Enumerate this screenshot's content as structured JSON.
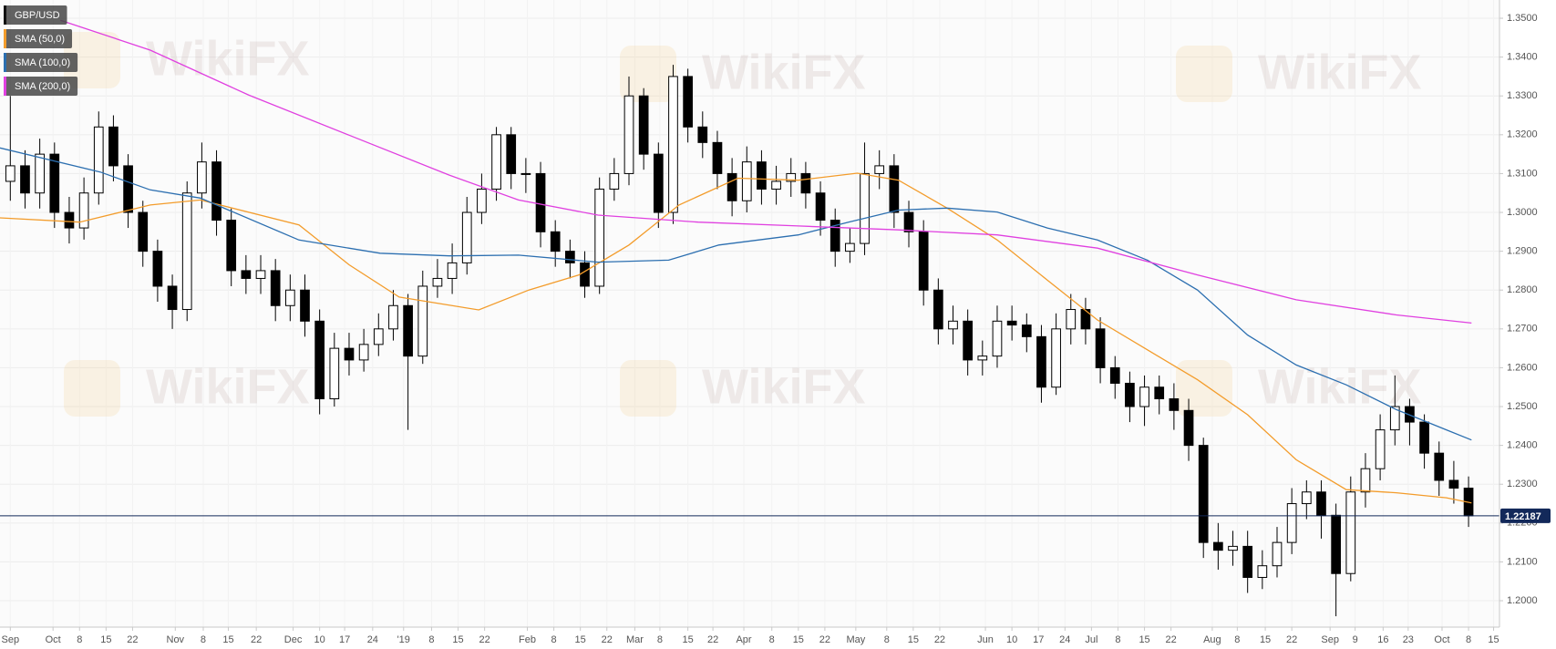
{
  "chart_data": {
    "type": "candlestick",
    "watermark": "WikiFX",
    "legend": "top-left",
    "grid": true,
    "up_color": "#ffffff",
    "down_color": "#000000",
    "last_price": 1.22187,
    "last_price_color": "#13295a",
    "xlim": [
      -0.7,
      101.1
    ],
    "ylim": [
      1.1932,
      1.3547
    ],
    "yticks": [
      {
        "value": 1.2,
        "label": "1.2000"
      },
      {
        "value": 1.21,
        "label": "1.2100"
      },
      {
        "value": 1.22,
        "label": "1.2200"
      },
      {
        "value": 1.23,
        "label": "1.2300"
      },
      {
        "value": 1.24,
        "label": "1.2400"
      },
      {
        "value": 1.25,
        "label": "1.2500"
      },
      {
        "value": 1.26,
        "label": "1.2600"
      },
      {
        "value": 1.27,
        "label": "1.2700"
      },
      {
        "value": 1.28,
        "label": "1.2800"
      },
      {
        "value": 1.29,
        "label": "1.2900"
      },
      {
        "value": 1.3,
        "label": "1.3000"
      },
      {
        "value": 1.31,
        "label": "1.3100"
      },
      {
        "value": 1.32,
        "label": "1.3200"
      },
      {
        "value": 1.33,
        "label": "1.3300"
      },
      {
        "value": 1.34,
        "label": "1.3400"
      },
      {
        "value": 1.35,
        "label": "1.3500"
      }
    ],
    "xticks": [
      {
        "value": 0,
        "label": "Sep"
      },
      {
        "value": 2.9,
        "label": "Oct"
      },
      {
        "value": 4.7,
        "label": "8"
      },
      {
        "value": 6.5,
        "label": "15"
      },
      {
        "value": 8.3,
        "label": "22"
      },
      {
        "value": 11.2,
        "label": "Nov"
      },
      {
        "value": 13.1,
        "label": "8"
      },
      {
        "value": 14.8,
        "label": "15"
      },
      {
        "value": 16.7,
        "label": "22"
      },
      {
        "value": 19.2,
        "label": "Dec"
      },
      {
        "value": 21.0,
        "label": "10"
      },
      {
        "value": 22.7,
        "label": "17"
      },
      {
        "value": 24.6,
        "label": "24"
      },
      {
        "value": 26.7,
        "label": "'19"
      },
      {
        "value": 28.6,
        "label": "8"
      },
      {
        "value": 30.4,
        "label": "15"
      },
      {
        "value": 32.2,
        "label": "22"
      },
      {
        "value": 35.1,
        "label": "Feb"
      },
      {
        "value": 36.9,
        "label": "8"
      },
      {
        "value": 38.7,
        "label": "15"
      },
      {
        "value": 40.5,
        "label": "22"
      },
      {
        "value": 42.4,
        "label": "Mar"
      },
      {
        "value": 44.1,
        "label": "8"
      },
      {
        "value": 46.0,
        "label": "15"
      },
      {
        "value": 47.7,
        "label": "22"
      },
      {
        "value": 49.8,
        "label": "Apr"
      },
      {
        "value": 51.7,
        "label": "8"
      },
      {
        "value": 53.5,
        "label": "15"
      },
      {
        "value": 55.3,
        "label": "22"
      },
      {
        "value": 57.4,
        "label": "May"
      },
      {
        "value": 59.5,
        "label": "8"
      },
      {
        "value": 61.3,
        "label": "15"
      },
      {
        "value": 63.1,
        "label": "22"
      },
      {
        "value": 66.2,
        "label": "Jun"
      },
      {
        "value": 68.0,
        "label": "10"
      },
      {
        "value": 69.8,
        "label": "17"
      },
      {
        "value": 71.6,
        "label": "24"
      },
      {
        "value": 73.4,
        "label": "Jul"
      },
      {
        "value": 75.2,
        "label": "8"
      },
      {
        "value": 77.0,
        "label": "15"
      },
      {
        "value": 78.8,
        "label": "22"
      },
      {
        "value": 81.6,
        "label": "Aug"
      },
      {
        "value": 83.3,
        "label": "8"
      },
      {
        "value": 85.2,
        "label": "15"
      },
      {
        "value": 87.0,
        "label": "22"
      },
      {
        "value": 89.6,
        "label": "Sep"
      },
      {
        "value": 91.3,
        "label": "9"
      },
      {
        "value": 93.2,
        "label": "16"
      },
      {
        "value": 94.9,
        "label": "23"
      },
      {
        "value": 97.2,
        "label": "Oct"
      },
      {
        "value": 99.0,
        "label": "8"
      },
      {
        "value": 100.7,
        "label": "15"
      }
    ],
    "series": [
      {
        "name": "GBP/USD",
        "type": "candlestick",
        "color": "#000000",
        "open": [
          1.308,
          1.312,
          1.305,
          1.315,
          1.3,
          1.296,
          1.305,
          1.322,
          1.312,
          1.3,
          1.29,
          1.281,
          1.275,
          1.305,
          1.313,
          1.298,
          1.285,
          1.283,
          1.285,
          1.276,
          1.28,
          1.272,
          1.252,
          1.265,
          1.262,
          1.266,
          1.27,
          1.276,
          1.263,
          1.281,
          1.283,
          1.287,
          1.3,
          1.306,
          1.32,
          1.31,
          1.31,
          1.295,
          1.29,
          1.287,
          1.281,
          1.306,
          1.31,
          1.33,
          1.315,
          1.3,
          1.335,
          1.322,
          1.318,
          1.31,
          1.303,
          1.313,
          1.306,
          1.308,
          1.31,
          1.305,
          1.298,
          1.29,
          1.292,
          1.31,
          1.312,
          1.3,
          1.295,
          1.28,
          1.27,
          1.272,
          1.262,
          1.263,
          1.272,
          1.271,
          1.268,
          1.255,
          1.27,
          1.275,
          1.27,
          1.26,
          1.256,
          1.25,
          1.255,
          1.252,
          1.249,
          1.24,
          1.215,
          1.213,
          1.214,
          1.206,
          1.209,
          1.215,
          1.225,
          1.228,
          1.222,
          1.207,
          1.228,
          1.234,
          1.244,
          1.25,
          1.246,
          1.238,
          1.231,
          1.229
        ],
        "high": [
          1.33,
          1.316,
          1.319,
          1.318,
          1.304,
          1.309,
          1.326,
          1.325,
          1.315,
          1.303,
          1.293,
          1.284,
          1.308,
          1.318,
          1.316,
          1.301,
          1.289,
          1.289,
          1.288,
          1.284,
          1.284,
          1.275,
          1.269,
          1.269,
          1.27,
          1.274,
          1.28,
          1.279,
          1.285,
          1.288,
          1.292,
          1.304,
          1.31,
          1.322,
          1.322,
          1.314,
          1.313,
          1.298,
          1.293,
          1.29,
          1.309,
          1.314,
          1.335,
          1.332,
          1.318,
          1.338,
          1.337,
          1.326,
          1.321,
          1.314,
          1.317,
          1.316,
          1.312,
          1.314,
          1.313,
          1.308,
          1.301,
          1.296,
          1.318,
          1.316,
          1.315,
          1.303,
          1.298,
          1.283,
          1.276,
          1.275,
          1.267,
          1.276,
          1.276,
          1.274,
          1.271,
          1.274,
          1.279,
          1.278,
          1.273,
          1.263,
          1.259,
          1.258,
          1.258,
          1.256,
          1.252,
          1.242,
          1.22,
          1.218,
          1.218,
          1.213,
          1.219,
          1.229,
          1.231,
          1.231,
          1.225,
          1.232,
          1.238,
          1.248,
          1.258,
          1.252,
          1.248,
          1.241,
          1.236,
          1.232
        ],
        "low": [
          1.303,
          1.301,
          1.301,
          1.296,
          1.292,
          1.293,
          1.302,
          1.308,
          1.296,
          1.286,
          1.277,
          1.27,
          1.272,
          1.301,
          1.294,
          1.281,
          1.279,
          1.279,
          1.272,
          1.272,
          1.268,
          1.248,
          1.25,
          1.258,
          1.259,
          1.263,
          1.267,
          1.244,
          1.261,
          1.278,
          1.279,
          1.284,
          1.297,
          1.303,
          1.306,
          1.305,
          1.291,
          1.286,
          1.283,
          1.278,
          1.279,
          1.303,
          1.307,
          1.311,
          1.296,
          1.297,
          1.318,
          1.314,
          1.306,
          1.299,
          1.3,
          1.302,
          1.302,
          1.304,
          1.301,
          1.294,
          1.286,
          1.287,
          1.289,
          1.306,
          1.296,
          1.291,
          1.276,
          1.266,
          1.266,
          1.258,
          1.258,
          1.26,
          1.267,
          1.264,
          1.251,
          1.253,
          1.266,
          1.266,
          1.256,
          1.252,
          1.246,
          1.245,
          1.248,
          1.244,
          1.236,
          1.211,
          1.208,
          1.209,
          1.202,
          1.203,
          1.206,
          1.212,
          1.221,
          1.216,
          1.196,
          1.205,
          1.224,
          1.231,
          1.24,
          1.24,
          1.234,
          1.227,
          1.225,
          1.219
        ],
        "close": [
          1.312,
          1.305,
          1.315,
          1.3,
          1.296,
          1.305,
          1.322,
          1.312,
          1.3,
          1.29,
          1.281,
          1.275,
          1.305,
          1.313,
          1.298,
          1.285,
          1.283,
          1.285,
          1.276,
          1.28,
          1.272,
          1.252,
          1.265,
          1.262,
          1.266,
          1.27,
          1.276,
          1.263,
          1.281,
          1.283,
          1.287,
          1.3,
          1.306,
          1.32,
          1.31,
          1.31,
          1.295,
          1.29,
          1.287,
          1.281,
          1.306,
          1.31,
          1.33,
          1.315,
          1.3,
          1.335,
          1.322,
          1.318,
          1.31,
          1.303,
          1.313,
          1.306,
          1.308,
          1.31,
          1.305,
          1.298,
          1.29,
          1.292,
          1.31,
          1.312,
          1.3,
          1.295,
          1.28,
          1.27,
          1.272,
          1.262,
          1.263,
          1.272,
          1.271,
          1.268,
          1.255,
          1.27,
          1.275,
          1.27,
          1.26,
          1.256,
          1.25,
          1.255,
          1.252,
          1.249,
          1.24,
          1.215,
          1.213,
          1.214,
          1.206,
          1.209,
          1.215,
          1.225,
          1.228,
          1.222,
          1.207,
          1.228,
          1.234,
          1.244,
          1.25,
          1.246,
          1.238,
          1.231,
          1.229,
          1.22187
        ]
      },
      {
        "name": "SMA (50,0)",
        "type": "line",
        "color": "#f39c2b",
        "x": [
          -0.7,
          4.7,
          9.5,
          12.9,
          19.6,
          23.0,
          26.4,
          31.8,
          35.2,
          38.6,
          42.0,
          45.4,
          49.4,
          53.5,
          57.5,
          60.3,
          63.6,
          67.0,
          70.4,
          73.8,
          77.2,
          80.6,
          84.0,
          87.3,
          90.7,
          94.1,
          97.5,
          99.2
        ],
        "values": [
          1.2986,
          1.2975,
          1.3019,
          1.3032,
          1.2968,
          1.2865,
          1.2782,
          1.2749,
          1.28,
          1.2839,
          1.2916,
          1.3019,
          1.3088,
          1.3083,
          1.3101,
          1.3083,
          1.3011,
          1.2929,
          1.2826,
          1.2723,
          1.2646,
          1.2569,
          1.2479,
          1.2363,
          1.2286,
          1.2278,
          1.2265,
          1.2252
        ]
      },
      {
        "name": "SMA (100,0)",
        "type": "line",
        "color": "#2c6fb0",
        "x": [
          -0.7,
          6.1,
          9.5,
          12.9,
          19.6,
          25.1,
          29.8,
          34.5,
          39.9,
          44.7,
          48.1,
          53.5,
          56.9,
          60.3,
          63.6,
          67.0,
          70.4,
          73.8,
          77.2,
          80.6,
          84.0,
          87.3,
          90.7,
          94.1,
          97.5,
          99.2
        ],
        "values": [
          1.3166,
          1.3104,
          1.3058,
          1.3037,
          1.2929,
          1.2895,
          1.2888,
          1.289,
          1.2872,
          1.2877,
          1.2916,
          1.2942,
          1.2975,
          1.3006,
          1.3011,
          1.3001,
          1.296,
          1.2929,
          1.2877,
          1.28,
          1.2684,
          1.2607,
          1.2556,
          1.2492,
          1.244,
          1.2414
        ]
      },
      {
        "name": "SMA (200,0)",
        "type": "line",
        "color": "#e040e0",
        "x": [
          3.4,
          9.5,
          16.2,
          23.0,
          29.8,
          34.5,
          39.9,
          46.7,
          53.5,
          60.3,
          67.0,
          73.8,
          80.6,
          87.3,
          94.1,
          99.2
        ],
        "values": [
          1.3495,
          1.3418,
          1.3302,
          1.3199,
          1.3096,
          1.3032,
          1.2993,
          1.2975,
          1.2965,
          1.2955,
          1.2942,
          1.2908,
          1.2839,
          1.2775,
          1.2736,
          1.2715
        ]
      }
    ]
  }
}
